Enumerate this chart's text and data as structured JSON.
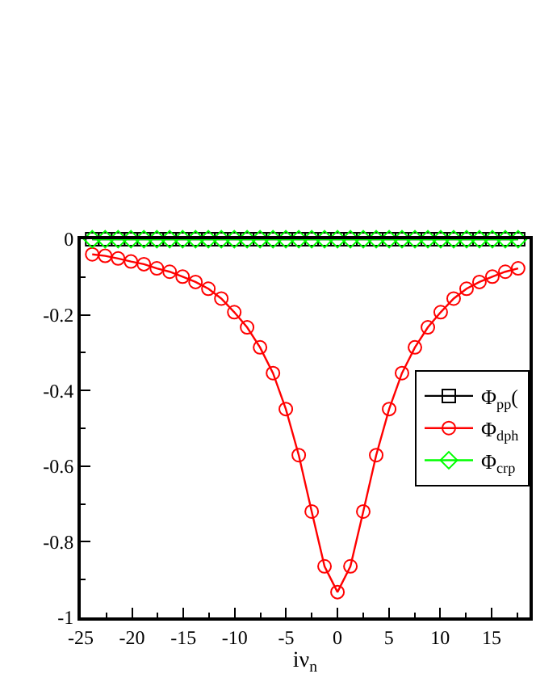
{
  "chart_data": {
    "type": "line",
    "xlabel": "iν$_{n}$",
    "x": [
      -23.88,
      -22.62,
      -21.36,
      -20.11,
      -18.85,
      -17.59,
      -16.34,
      -15.08,
      -13.82,
      -12.57,
      -11.31,
      -10.05,
      -8.8,
      -7.54,
      -6.28,
      -5.03,
      -3.77,
      -2.51,
      -1.26,
      0,
      1.26,
      2.51,
      3.77,
      5.03,
      6.28,
      7.54,
      8.8,
      10.05,
      11.31,
      12.57,
      13.82,
      15.08,
      16.34,
      17.59
    ],
    "series": [
      {
        "name": "Φ$_{pp}$(",
        "color": "#000000",
        "marker": "square",
        "values": [
          0,
          0,
          0,
          0,
          0,
          0,
          0,
          0,
          0,
          0,
          0,
          0,
          0,
          0,
          0,
          0,
          0,
          0,
          0,
          0,
          0,
          0,
          0,
          0,
          0,
          0,
          0,
          0,
          0,
          0,
          0,
          0,
          0,
          0
        ]
      },
      {
        "name": "Φ$_{dph}$",
        "color": "#ff0000",
        "marker": "circle",
        "values": [
          -0.04,
          -0.044,
          -0.051,
          -0.059,
          -0.066,
          -0.077,
          -0.086,
          -0.099,
          -0.113,
          -0.131,
          -0.157,
          -0.193,
          -0.233,
          -0.286,
          -0.354,
          -0.449,
          -0.571,
          -0.72,
          -0.865,
          -0.933,
          -0.865,
          -0.72,
          -0.571,
          -0.449,
          -0.354,
          -0.286,
          -0.233,
          -0.193,
          -0.157,
          -0.131,
          -0.113,
          -0.099,
          -0.086,
          -0.077
        ]
      },
      {
        "name": "Φ$_{crp}$",
        "color": "#00ff00",
        "marker": "diamond",
        "values": [
          0,
          0,
          0,
          0,
          0,
          0,
          0,
          0,
          0,
          0,
          0,
          0,
          0,
          0,
          0,
          0,
          0,
          0,
          0,
          0,
          0,
          0,
          0,
          0,
          0,
          0,
          0,
          0,
          0,
          0,
          0,
          0,
          0,
          0
        ]
      }
    ],
    "xlim": [
      -25,
      18.7
    ],
    "xticks": [
      -25,
      -20,
      -15,
      -10,
      -5,
      0,
      5,
      10,
      15
    ],
    "ylim": [
      -1,
      0
    ],
    "yticks": [
      -1,
      -0.8,
      -0.6,
      -0.4,
      -0.2,
      0
    ],
    "legend": "right",
    "line_style": "solid"
  }
}
